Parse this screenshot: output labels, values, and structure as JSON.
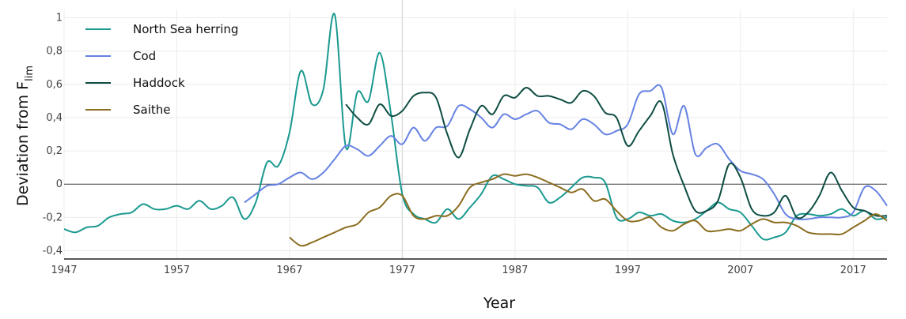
{
  "chart_data": {
    "type": "line",
    "xlabel": "Year",
    "ylabel_main": "Deviation from F",
    "ylabel_sub": "lim",
    "xlim": [
      1947,
      2020
    ],
    "ylim": [
      -0.45,
      1.05
    ],
    "x_ticks": [
      1947,
      1957,
      1967,
      1977,
      1987,
      1997,
      2007,
      2017
    ],
    "x_tick_labels": [
      "1947",
      "1957",
      "1967",
      "1977",
      "1987",
      "1997",
      "2007",
      "2017"
    ],
    "y_ticks": [
      -0.4,
      -0.2,
      0,
      0.2,
      0.4,
      0.6,
      0.8,
      1
    ],
    "y_tick_labels": [
      "-0,4",
      "-0,2",
      "0",
      "0,2",
      "0,4",
      "0,6",
      "0,8",
      "1"
    ],
    "grid": true,
    "zero_line": true,
    "highlight_x": 1977,
    "legend_position": "top-left",
    "series": [
      {
        "name": "North Sea herring",
        "color": "#1a9990",
        "points": [
          [
            1947,
            -0.27
          ],
          [
            1948,
            -0.29
          ],
          [
            1949,
            -0.26
          ],
          [
            1950,
            -0.25
          ],
          [
            1951,
            -0.2
          ],
          [
            1952,
            -0.18
          ],
          [
            1953,
            -0.17
          ],
          [
            1954,
            -0.12
          ],
          [
            1955,
            -0.15
          ],
          [
            1956,
            -0.15
          ],
          [
            1957,
            -0.13
          ],
          [
            1958,
            -0.15
          ],
          [
            1959,
            -0.1
          ],
          [
            1960,
            -0.15
          ],
          [
            1961,
            -0.13
          ],
          [
            1962,
            -0.08
          ],
          [
            1963,
            -0.21
          ],
          [
            1964,
            -0.11
          ],
          [
            1965,
            0.13
          ],
          [
            1966,
            0.11
          ],
          [
            1967,
            0.31
          ],
          [
            1968,
            0.68
          ],
          [
            1969,
            0.48
          ],
          [
            1970,
            0.57
          ],
          [
            1971,
            1.02
          ],
          [
            1972,
            0.22
          ],
          [
            1973,
            0.55
          ],
          [
            1974,
            0.5
          ],
          [
            1975,
            0.79
          ],
          [
            1976,
            0.42
          ],
          [
            1977,
            -0.06
          ],
          [
            1978,
            -0.18
          ],
          [
            1979,
            -0.21
          ],
          [
            1980,
            -0.23
          ],
          [
            1981,
            -0.15
          ],
          [
            1982,
            -0.21
          ],
          [
            1983,
            -0.14
          ],
          [
            1984,
            -0.06
          ],
          [
            1985,
            0.05
          ],
          [
            1986,
            0.03
          ],
          [
            1987,
            0.0
          ],
          [
            1988,
            -0.01
          ],
          [
            1989,
            -0.02
          ],
          [
            1990,
            -0.11
          ],
          [
            1991,
            -0.08
          ],
          [
            1992,
            -0.02
          ],
          [
            1993,
            0.04
          ],
          [
            1994,
            0.04
          ],
          [
            1995,
            0.01
          ],
          [
            1996,
            -0.2
          ],
          [
            1997,
            -0.21
          ],
          [
            1998,
            -0.17
          ],
          [
            1999,
            -0.19
          ],
          [
            2000,
            -0.18
          ],
          [
            2001,
            -0.22
          ],
          [
            2002,
            -0.23
          ],
          [
            2003,
            -0.21
          ],
          [
            2004,
            -0.16
          ],
          [
            2005,
            -0.11
          ],
          [
            2006,
            -0.15
          ],
          [
            2007,
            -0.17
          ],
          [
            2008,
            -0.25
          ],
          [
            2009,
            -0.33
          ],
          [
            2010,
            -0.32
          ],
          [
            2011,
            -0.29
          ],
          [
            2012,
            -0.19
          ],
          [
            2013,
            -0.18
          ],
          [
            2014,
            -0.19
          ],
          [
            2015,
            -0.18
          ],
          [
            2016,
            -0.15
          ],
          [
            2017,
            -0.19
          ],
          [
            2018,
            -0.16
          ],
          [
            2019,
            -0.21
          ],
          [
            2020,
            -0.2
          ]
        ]
      },
      {
        "name": "Cod",
        "color": "#6682e2",
        "points": [
          [
            1963,
            -0.11
          ],
          [
            1964,
            -0.06
          ],
          [
            1965,
            -0.01
          ],
          [
            1966,
            0.0
          ],
          [
            1967,
            0.04
          ],
          [
            1968,
            0.07
          ],
          [
            1969,
            0.03
          ],
          [
            1970,
            0.07
          ],
          [
            1971,
            0.15
          ],
          [
            1972,
            0.23
          ],
          [
            1973,
            0.21
          ],
          [
            1974,
            0.17
          ],
          [
            1975,
            0.23
          ],
          [
            1976,
            0.29
          ],
          [
            1977,
            0.24
          ],
          [
            1978,
            0.34
          ],
          [
            1979,
            0.26
          ],
          [
            1980,
            0.34
          ],
          [
            1981,
            0.35
          ],
          [
            1982,
            0.47
          ],
          [
            1983,
            0.45
          ],
          [
            1984,
            0.4
          ],
          [
            1985,
            0.34
          ],
          [
            1986,
            0.42
          ],
          [
            1987,
            0.39
          ],
          [
            1988,
            0.42
          ],
          [
            1989,
            0.44
          ],
          [
            1990,
            0.37
          ],
          [
            1991,
            0.36
          ],
          [
            1992,
            0.33
          ],
          [
            1993,
            0.39
          ],
          [
            1994,
            0.36
          ],
          [
            1995,
            0.3
          ],
          [
            1996,
            0.32
          ],
          [
            1997,
            0.36
          ],
          [
            1998,
            0.54
          ],
          [
            1999,
            0.56
          ],
          [
            2000,
            0.58
          ],
          [
            2001,
            0.3
          ],
          [
            2002,
            0.47
          ],
          [
            2003,
            0.18
          ],
          [
            2004,
            0.22
          ],
          [
            2005,
            0.24
          ],
          [
            2006,
            0.15
          ],
          [
            2007,
            0.08
          ],
          [
            2008,
            0.06
          ],
          [
            2009,
            0.03
          ],
          [
            2010,
            -0.06
          ],
          [
            2011,
            -0.18
          ],
          [
            2012,
            -0.21
          ],
          [
            2013,
            -0.21
          ],
          [
            2014,
            -0.2
          ],
          [
            2015,
            -0.2
          ],
          [
            2016,
            -0.2
          ],
          [
            2017,
            -0.17
          ],
          [
            2018,
            -0.02
          ],
          [
            2019,
            -0.04
          ],
          [
            2020,
            -0.13
          ]
        ]
      },
      {
        "name": "Haddock",
        "color": "#0e4d43",
        "points": [
          [
            1972,
            0.48
          ],
          [
            1973,
            0.4
          ],
          [
            1974,
            0.36
          ],
          [
            1975,
            0.48
          ],
          [
            1976,
            0.41
          ],
          [
            1977,
            0.44
          ],
          [
            1978,
            0.53
          ],
          [
            1979,
            0.55
          ],
          [
            1980,
            0.52
          ],
          [
            1981,
            0.3
          ],
          [
            1982,
            0.16
          ],
          [
            1983,
            0.33
          ],
          [
            1984,
            0.47
          ],
          [
            1985,
            0.42
          ],
          [
            1986,
            0.53
          ],
          [
            1987,
            0.52
          ],
          [
            1988,
            0.58
          ],
          [
            1989,
            0.53
          ],
          [
            1990,
            0.53
          ],
          [
            1991,
            0.51
          ],
          [
            1992,
            0.49
          ],
          [
            1993,
            0.56
          ],
          [
            1994,
            0.53
          ],
          [
            1995,
            0.43
          ],
          [
            1996,
            0.4
          ],
          [
            1997,
            0.23
          ],
          [
            1998,
            0.32
          ],
          [
            1999,
            0.41
          ],
          [
            2000,
            0.49
          ],
          [
            2001,
            0.18
          ],
          [
            2002,
            -0.01
          ],
          [
            2003,
            -0.16
          ],
          [
            2004,
            -0.16
          ],
          [
            2005,
            -0.1
          ],
          [
            2006,
            0.12
          ],
          [
            2007,
            0.04
          ],
          [
            2008,
            -0.15
          ],
          [
            2009,
            -0.19
          ],
          [
            2010,
            -0.17
          ],
          [
            2011,
            -0.07
          ],
          [
            2012,
            -0.2
          ],
          [
            2013,
            -0.17
          ],
          [
            2014,
            -0.07
          ],
          [
            2015,
            0.07
          ],
          [
            2016,
            -0.04
          ],
          [
            2017,
            -0.14
          ],
          [
            2018,
            -0.16
          ],
          [
            2019,
            -0.19
          ],
          [
            2020,
            -0.19
          ]
        ]
      },
      {
        "name": "Saithe",
        "color": "#8b6d20",
        "points": [
          [
            1967,
            -0.32
          ],
          [
            1968,
            -0.37
          ],
          [
            1969,
            -0.35
          ],
          [
            1970,
            -0.32
          ],
          [
            1971,
            -0.29
          ],
          [
            1972,
            -0.26
          ],
          [
            1973,
            -0.24
          ],
          [
            1974,
            -0.17
          ],
          [
            1975,
            -0.14
          ],
          [
            1976,
            -0.07
          ],
          [
            1977,
            -0.07
          ],
          [
            1978,
            -0.19
          ],
          [
            1979,
            -0.21
          ],
          [
            1980,
            -0.19
          ],
          [
            1981,
            -0.19
          ],
          [
            1982,
            -0.13
          ],
          [
            1983,
            -0.02
          ],
          [
            1984,
            0.01
          ],
          [
            1985,
            0.03
          ],
          [
            1986,
            0.06
          ],
          [
            1987,
            0.05
          ],
          [
            1988,
            0.06
          ],
          [
            1989,
            0.04
          ],
          [
            1990,
            0.01
          ],
          [
            1991,
            -0.02
          ],
          [
            1992,
            -0.05
          ],
          [
            1993,
            -0.03
          ],
          [
            1994,
            -0.1
          ],
          [
            1995,
            -0.09
          ],
          [
            1996,
            -0.16
          ],
          [
            1997,
            -0.22
          ],
          [
            1998,
            -0.22
          ],
          [
            1999,
            -0.2
          ],
          [
            2000,
            -0.26
          ],
          [
            2001,
            -0.28
          ],
          [
            2002,
            -0.24
          ],
          [
            2003,
            -0.22
          ],
          [
            2004,
            -0.28
          ],
          [
            2005,
            -0.28
          ],
          [
            2006,
            -0.27
          ],
          [
            2007,
            -0.28
          ],
          [
            2008,
            -0.24
          ],
          [
            2009,
            -0.21
          ],
          [
            2010,
            -0.23
          ],
          [
            2011,
            -0.23
          ],
          [
            2012,
            -0.25
          ],
          [
            2013,
            -0.29
          ],
          [
            2014,
            -0.3
          ],
          [
            2015,
            -0.3
          ],
          [
            2016,
            -0.3
          ],
          [
            2017,
            -0.26
          ],
          [
            2018,
            -0.22
          ],
          [
            2019,
            -0.18
          ],
          [
            2020,
            -0.22
          ]
        ]
      }
    ]
  }
}
